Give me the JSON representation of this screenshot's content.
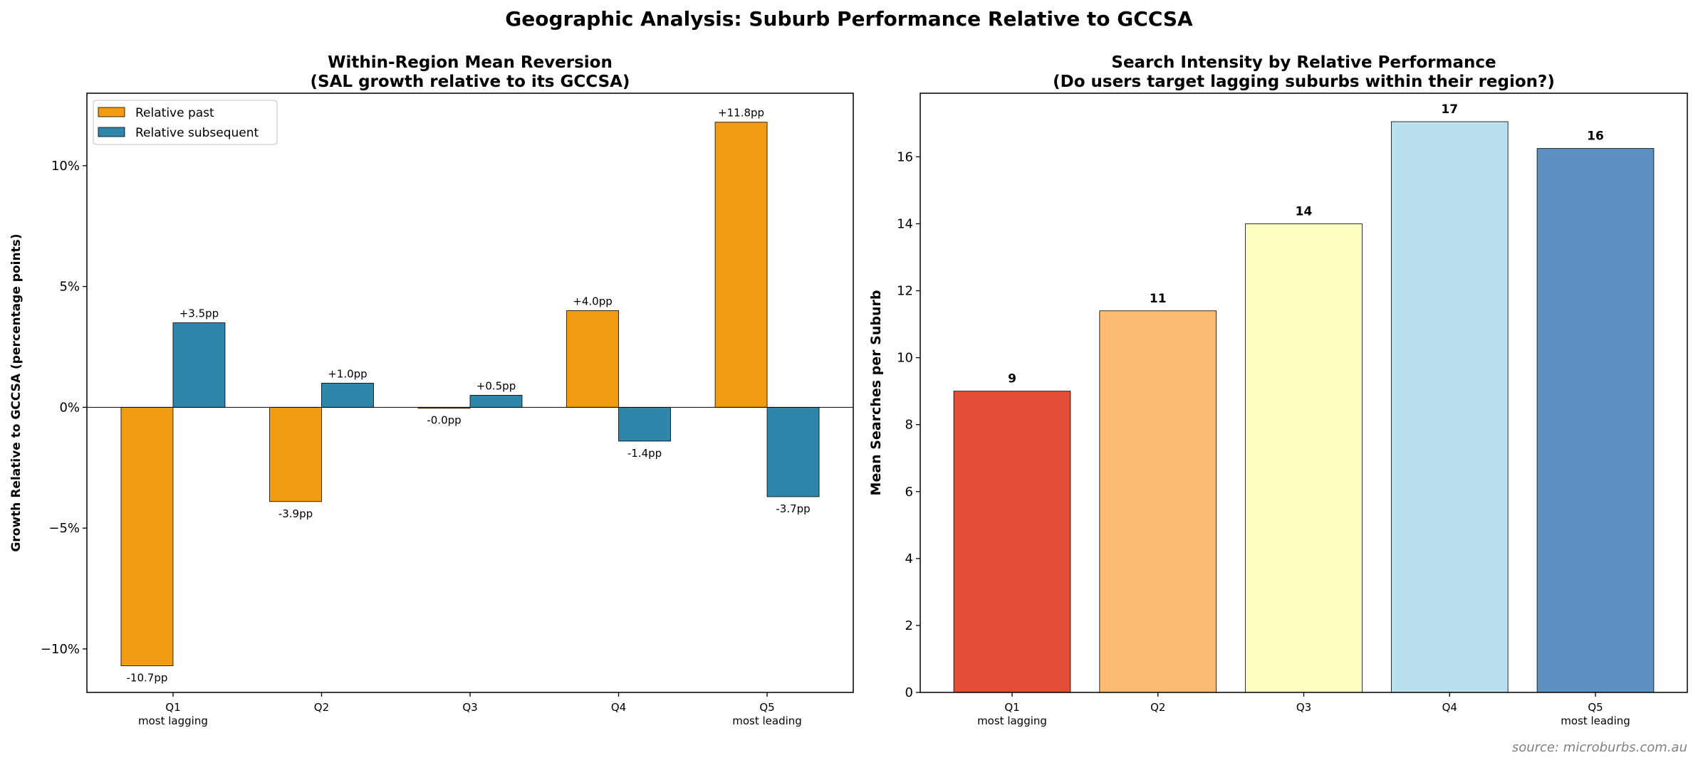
{
  "figure": {
    "title": "Geographic Analysis: Suburb Performance Relative to GCCSA",
    "source": "source: microburbs.com.au"
  },
  "chart_data": [
    {
      "type": "bar",
      "title": "Within-Region Mean Reversion\n(SAL growth relative to its GCCSA)",
      "title_lines": [
        "Within-Region Mean Reversion",
        "(SAL growth relative to its GCCSA)"
      ],
      "xlabel": "",
      "ylabel": "Growth Relative to GCCSA (percentage points)",
      "categories": [
        "Q1\nmost lagging",
        "Q2",
        "Q3",
        "Q4",
        "Q5\nmost leading"
      ],
      "ylim": [
        -11.8,
        13.0
      ],
      "yticks": [
        -10,
        -5,
        0,
        5,
        10
      ],
      "ytick_labels": [
        "−10%",
        "−5%",
        "0%",
        "5%",
        "10%"
      ],
      "grid": false,
      "legend": "top-left",
      "series": [
        {
          "name": "Relative past",
          "color": "#F39C12",
          "values": [
            -10.7,
            -3.9,
            -0.04,
            4.0,
            11.8
          ],
          "labels": [
            "-10.7pp",
            "-3.9pp",
            "-0.0pp",
            "+4.0pp",
            "+11.8pp"
          ]
        },
        {
          "name": "Relative subsequent",
          "color": "#2E86AB",
          "values": [
            3.5,
            1.0,
            0.5,
            -1.4,
            -3.7
          ],
          "labels": [
            "+3.5pp",
            "+1.0pp",
            "+0.5pp",
            "-1.4pp",
            "-3.7pp"
          ]
        }
      ]
    },
    {
      "type": "bar",
      "title": "Search Intensity by Relative Performance\n(Do users target lagging suburbs within their region?)",
      "title_lines": [
        "Search Intensity by Relative Performance",
        "(Do users target lagging suburbs within their region?)"
      ],
      "xlabel": "",
      "ylabel": "Mean Searches per Suburb",
      "categories": [
        "Q1\nmost lagging",
        "Q2",
        "Q3",
        "Q4",
        "Q5\nmost leading"
      ],
      "ylim": [
        0,
        17.9
      ],
      "yticks": [
        0,
        2,
        4,
        6,
        8,
        10,
        12,
        14,
        16
      ],
      "grid": false,
      "values": [
        9.0,
        11.4,
        14.0,
        17.05,
        16.25
      ],
      "labels": [
        "9",
        "11",
        "14",
        "17",
        "16"
      ],
      "colors": [
        "#E34F36",
        "#FBBB72",
        "#FEFEC0",
        "#B9E0ED",
        "#5D91C1"
      ]
    }
  ]
}
